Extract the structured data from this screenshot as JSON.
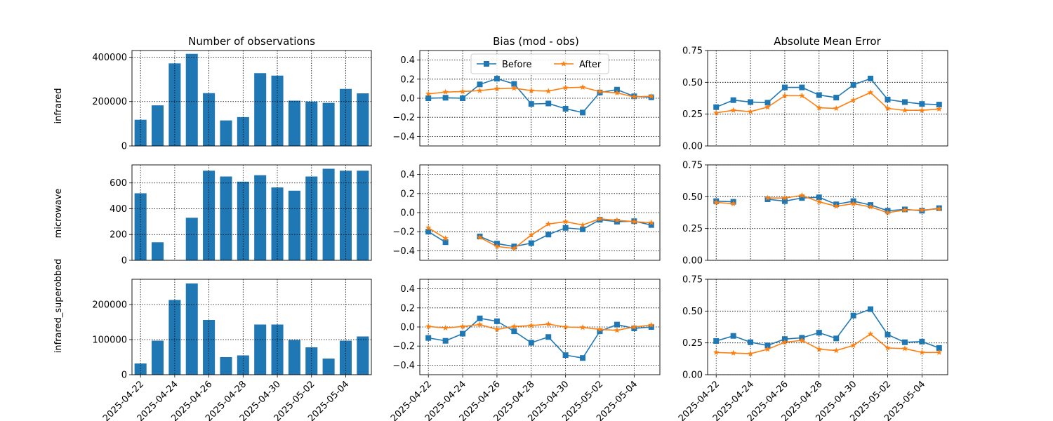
{
  "figure": {
    "column_titles": [
      "Number of observations",
      "Bias (mod - obs)",
      "Absolute Mean Error"
    ],
    "row_labels": [
      "infrared",
      "microwave",
      "infrared_superobbed"
    ],
    "legend": {
      "placement": "top-center of bias panel, row 1",
      "entries": [
        "Before",
        "After"
      ]
    },
    "colors": {
      "bar": "#1f77b4",
      "before": "#1f77b4",
      "after": "#ff7f0e"
    },
    "x_tick_labels": [
      "2025-04-22",
      "2025-04-24",
      "2025-04-26",
      "2025-04-28",
      "2025-04-30",
      "2025-05-02",
      "2025-05-04"
    ]
  },
  "chart_data": [
    {
      "type": "bar",
      "row": "infrared",
      "column": "Number of observations",
      "title": "Number of observations",
      "ylabel": "infrared",
      "x": [
        "2025-04-22",
        "2025-04-23",
        "2025-04-24",
        "2025-04-25",
        "2025-04-26",
        "2025-04-27",
        "2025-04-28",
        "2025-04-29",
        "2025-04-30",
        "2025-05-01",
        "2025-05-02",
        "2025-05-03",
        "2025-05-04",
        "2025-05-05"
      ],
      "values": [
        118000,
        183000,
        372000,
        415000,
        238000,
        115000,
        130000,
        328000,
        317000,
        204000,
        200000,
        194000,
        257000,
        237000
      ],
      "ylim": [
        0,
        430000
      ],
      "yticks": [
        0,
        200000,
        400000
      ],
      "ytick_labels": [
        "0",
        "200000",
        "400000"
      ],
      "grid": true
    },
    {
      "type": "line",
      "row": "infrared",
      "column": "Bias (mod - obs)",
      "title": "Bias (mod - obs)",
      "x": [
        "2025-04-22",
        "2025-04-23",
        "2025-04-24",
        "2025-04-25",
        "2025-04-26",
        "2025-04-27",
        "2025-04-28",
        "2025-04-29",
        "2025-04-30",
        "2025-05-01",
        "2025-05-02",
        "2025-05-03",
        "2025-05-04",
        "2025-05-05"
      ],
      "series": [
        {
          "name": "Before",
          "marker": "square",
          "values": [
            0.0,
            0.005,
            0.0,
            0.145,
            0.205,
            0.15,
            -0.06,
            -0.055,
            -0.11,
            -0.15,
            0.06,
            0.09,
            0.02,
            0.01
          ]
        },
        {
          "name": "After",
          "marker": "star",
          "values": [
            0.045,
            0.065,
            0.07,
            0.08,
            0.1,
            0.105,
            0.08,
            0.075,
            0.11,
            0.115,
            0.07,
            0.055,
            0.015,
            0.02
          ]
        }
      ],
      "ylim": [
        -0.5,
        0.5
      ],
      "yticks": [
        -0.4,
        -0.2,
        0.0,
        0.2,
        0.4
      ],
      "ytick_labels": [
        "−0.4",
        "−0.2",
        "0.0",
        "0.2",
        "0.4"
      ],
      "grid": true,
      "legend": "top-center"
    },
    {
      "type": "line",
      "row": "infrared",
      "column": "Absolute Mean Error",
      "title": "Absolute Mean Error",
      "x": [
        "2025-04-22",
        "2025-04-23",
        "2025-04-24",
        "2025-04-25",
        "2025-04-26",
        "2025-04-27",
        "2025-04-28",
        "2025-04-29",
        "2025-04-30",
        "2025-05-01",
        "2025-05-02",
        "2025-05-03",
        "2025-05-04",
        "2025-05-05"
      ],
      "series": [
        {
          "name": "Before",
          "marker": "square",
          "values": [
            0.305,
            0.36,
            0.345,
            0.34,
            0.46,
            0.46,
            0.4,
            0.38,
            0.48,
            0.53,
            0.365,
            0.345,
            0.33,
            0.325
          ]
        },
        {
          "name": "After",
          "marker": "star",
          "values": [
            0.26,
            0.28,
            0.27,
            0.305,
            0.395,
            0.395,
            0.3,
            0.295,
            0.36,
            0.42,
            0.295,
            0.28,
            0.28,
            0.29
          ]
        }
      ],
      "ylim": [
        0,
        0.75
      ],
      "yticks": [
        0,
        0.25,
        0.5,
        0.75
      ],
      "ytick_labels": [
        "0.00",
        "0.25",
        "0.50",
        "0.75"
      ],
      "grid": true
    },
    {
      "type": "bar",
      "row": "microwave",
      "column": "Number of observations",
      "ylabel": "microwave",
      "x": [
        "2025-04-22",
        "2025-04-23",
        "2025-04-24",
        "2025-04-25",
        "2025-04-26",
        "2025-04-27",
        "2025-04-28",
        "2025-04-29",
        "2025-04-30",
        "2025-05-01",
        "2025-05-02",
        "2025-05-03",
        "2025-05-04",
        "2025-05-05"
      ],
      "values": [
        520,
        140,
        0,
        330,
        695,
        650,
        610,
        660,
        565,
        540,
        650,
        710,
        695,
        695
      ],
      "ylim": [
        0,
        740
      ],
      "yticks": [
        0,
        200,
        400,
        600
      ],
      "ytick_labels": [
        "0",
        "200",
        "400",
        "600"
      ],
      "grid": true
    },
    {
      "type": "line",
      "row": "microwave",
      "column": "Bias (mod - obs)",
      "x": [
        "2025-04-22",
        "2025-04-23",
        "2025-04-24",
        "2025-04-25",
        "2025-04-26",
        "2025-04-27",
        "2025-04-28",
        "2025-04-29",
        "2025-04-30",
        "2025-05-01",
        "2025-05-02",
        "2025-05-03",
        "2025-05-04",
        "2025-05-05"
      ],
      "series": [
        {
          "name": "Before",
          "marker": "square",
          "values": [
            -0.2,
            -0.31,
            null,
            -0.25,
            -0.325,
            -0.355,
            -0.32,
            -0.23,
            -0.16,
            -0.175,
            -0.075,
            -0.095,
            -0.09,
            -0.13
          ]
        },
        {
          "name": "After",
          "marker": "star",
          "values": [
            -0.16,
            -0.27,
            null,
            -0.26,
            -0.355,
            -0.375,
            -0.235,
            -0.12,
            -0.095,
            -0.13,
            -0.065,
            -0.08,
            -0.095,
            -0.105
          ]
        }
      ],
      "ylim": [
        -0.5,
        0.5
      ],
      "yticks": [
        -0.4,
        -0.2,
        0.0,
        0.2,
        0.4
      ],
      "ytick_labels": [
        "−0.4",
        "−0.2",
        "0.0",
        "0.2",
        "0.4"
      ],
      "grid": true
    },
    {
      "type": "line",
      "row": "microwave",
      "column": "Absolute Mean Error",
      "x": [
        "2025-04-22",
        "2025-04-23",
        "2025-04-24",
        "2025-04-25",
        "2025-04-26",
        "2025-04-27",
        "2025-04-28",
        "2025-04-29",
        "2025-04-30",
        "2025-05-01",
        "2025-05-02",
        "2025-05-03",
        "2025-05-04",
        "2025-05-05"
      ],
      "series": [
        {
          "name": "Before",
          "marker": "square",
          "values": [
            0.465,
            0.46,
            null,
            0.48,
            0.465,
            0.49,
            0.495,
            0.44,
            0.465,
            0.435,
            0.39,
            0.4,
            0.39,
            0.41
          ]
        },
        {
          "name": "After",
          "marker": "star",
          "values": [
            0.455,
            0.445,
            null,
            0.49,
            0.49,
            0.51,
            0.46,
            0.425,
            0.445,
            0.42,
            0.375,
            0.395,
            0.395,
            0.405
          ]
        }
      ],
      "ylim": [
        0,
        0.75
      ],
      "yticks": [
        0,
        0.25,
        0.5,
        0.75
      ],
      "ytick_labels": [
        "0.00",
        "0.25",
        "0.50",
        "0.75"
      ],
      "grid": true
    },
    {
      "type": "bar",
      "row": "infrared_superobbed",
      "column": "Number of observations",
      "ylabel": "infrared_superobbed",
      "x": [
        "2025-04-22",
        "2025-04-23",
        "2025-04-24",
        "2025-04-25",
        "2025-04-26",
        "2025-04-27",
        "2025-04-28",
        "2025-04-29",
        "2025-04-30",
        "2025-05-01",
        "2025-05-02",
        "2025-05-03",
        "2025-05-04",
        "2025-05-05"
      ],
      "values": [
        32000,
        97000,
        213000,
        260000,
        156000,
        50000,
        55000,
        143000,
        143000,
        99000,
        78000,
        46000,
        97000,
        109000
      ],
      "ylim": [
        0,
        272000
      ],
      "yticks": [
        0,
        100000,
        200000
      ],
      "ytick_labels": [
        "0",
        "100000",
        "200000"
      ],
      "grid": true,
      "xtick_labels": [
        "2025-04-22",
        "2025-04-24",
        "2025-04-26",
        "2025-04-28",
        "2025-04-30",
        "2025-05-02",
        "2025-05-04"
      ]
    },
    {
      "type": "line",
      "row": "infrared_superobbed",
      "column": "Bias (mod - obs)",
      "x": [
        "2025-04-22",
        "2025-04-23",
        "2025-04-24",
        "2025-04-25",
        "2025-04-26",
        "2025-04-27",
        "2025-04-28",
        "2025-04-29",
        "2025-04-30",
        "2025-05-01",
        "2025-05-02",
        "2025-05-03",
        "2025-05-04",
        "2025-05-05"
      ],
      "series": [
        {
          "name": "Before",
          "marker": "square",
          "values": [
            -0.115,
            -0.145,
            -0.07,
            0.09,
            0.06,
            -0.045,
            -0.165,
            -0.105,
            -0.295,
            -0.325,
            -0.045,
            0.025,
            -0.015,
            0.0
          ]
        },
        {
          "name": "After",
          "marker": "star",
          "values": [
            0.005,
            -0.01,
            0.005,
            0.025,
            -0.025,
            0.005,
            0.015,
            0.03,
            0.0,
            -0.005,
            -0.025,
            -0.035,
            0.0,
            0.02
          ]
        }
      ],
      "ylim": [
        -0.5,
        0.5
      ],
      "yticks": [
        -0.4,
        -0.2,
        0.0,
        0.2,
        0.4
      ],
      "ytick_labels": [
        "−0.4",
        "−0.2",
        "0.0",
        "0.2",
        "0.4"
      ],
      "grid": true,
      "xtick_labels": [
        "2025-04-22",
        "2025-04-24",
        "2025-04-26",
        "2025-04-28",
        "2025-04-30",
        "2025-05-02",
        "2025-05-04"
      ]
    },
    {
      "type": "line",
      "row": "infrared_superobbed",
      "column": "Absolute Mean Error",
      "x": [
        "2025-04-22",
        "2025-04-23",
        "2025-04-24",
        "2025-04-25",
        "2025-04-26",
        "2025-04-27",
        "2025-04-28",
        "2025-04-29",
        "2025-04-30",
        "2025-05-01",
        "2025-05-02",
        "2025-05-03",
        "2025-05-04",
        "2025-05-05"
      ],
      "series": [
        {
          "name": "Before",
          "marker": "square",
          "values": [
            0.265,
            0.305,
            0.255,
            0.23,
            0.28,
            0.29,
            0.33,
            0.285,
            0.465,
            0.515,
            0.315,
            0.255,
            0.26,
            0.21
          ]
        },
        {
          "name": "After",
          "marker": "star",
          "values": [
            0.175,
            0.17,
            0.165,
            0.2,
            0.255,
            0.27,
            0.2,
            0.19,
            0.23,
            0.32,
            0.21,
            0.205,
            0.175,
            0.175
          ]
        }
      ],
      "ylim": [
        0,
        0.75
      ],
      "yticks": [
        0,
        0.25,
        0.5,
        0.75
      ],
      "ytick_labels": [
        "0.00",
        "0.25",
        "0.50",
        "0.75"
      ],
      "grid": true,
      "xtick_labels": [
        "2025-04-22",
        "2025-04-24",
        "2025-04-26",
        "2025-04-28",
        "2025-04-30",
        "2025-05-02",
        "2025-05-04"
      ]
    }
  ]
}
